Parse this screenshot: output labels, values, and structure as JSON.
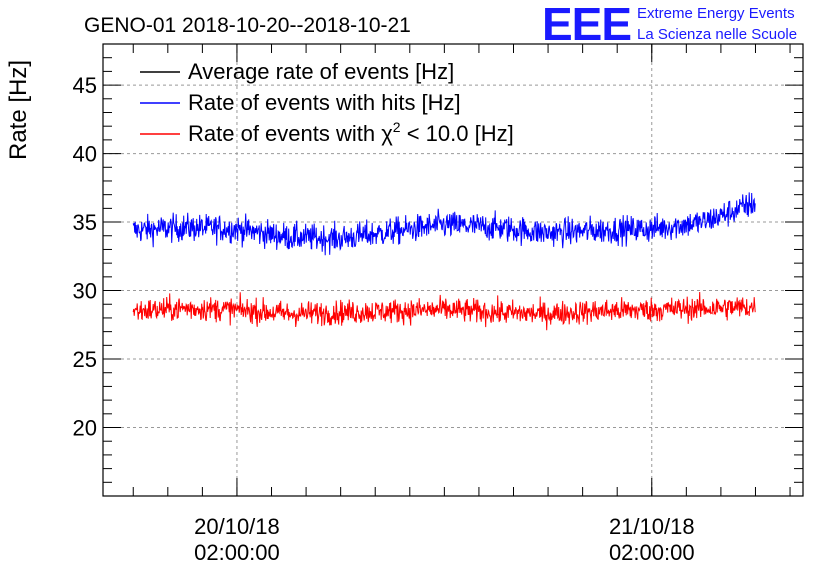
{
  "chart_data": {
    "type": "line",
    "title": "GENO-01 2018-10-20--2018-10-21",
    "ylabel": "Rate [Hz]",
    "xlabel": "",
    "ylim": [
      15,
      48
    ],
    "yticks": [
      20,
      25,
      30,
      35,
      40,
      45
    ],
    "xticks": [
      {
        "date": "20/10/18",
        "time": "02:00:00",
        "t": "2018-10-20T02:00:00"
      },
      {
        "date": "21/10/18",
        "time": "02:00:00",
        "t": "2018-10-21T02:00:00"
      }
    ],
    "xlim": [
      "2018-10-19T18:15:00",
      "2018-10-21T10:45:00"
    ],
    "grid": true,
    "legend_position": "top-left",
    "legend": [
      {
        "name": "Average rate of events [Hz]",
        "color": "#000000"
      },
      {
        "name": "Rate of events with hits [Hz]",
        "color": "#0000ff"
      },
      {
        "name_prefix": "Rate of events with ",
        "chi": "χ",
        "sup": "2",
        "name_suffix": " < 10.0 [Hz]",
        "color": "#ff0000"
      }
    ],
    "series": [
      {
        "name": "Rate of events with hits [Hz]",
        "color": "#0000ff",
        "x": [
          "2018-10-19T20:00:00",
          "2018-10-19T23:00:00",
          "2018-10-20T02:00:00",
          "2018-10-20T05:00:00",
          "2018-10-20T08:00:00",
          "2018-10-20T11:00:00",
          "2018-10-20T14:00:00",
          "2018-10-20T17:00:00",
          "2018-10-20T20:00:00",
          "2018-10-20T23:00:00",
          "2018-10-21T02:00:00",
          "2018-10-21T05:00:00",
          "2018-10-21T08:00:00"
        ],
        "y": [
          34.4,
          34.6,
          34.5,
          33.9,
          33.8,
          34.3,
          34.8,
          34.6,
          34.2,
          34.4,
          34.5,
          35.0,
          36.4
        ],
        "noise": 0.9
      },
      {
        "name": "Rate of events with χ2 < 10.0 [Hz]",
        "color": "#ff0000",
        "x": [
          "2018-10-19T20:00:00",
          "2018-10-19T23:00:00",
          "2018-10-20T02:00:00",
          "2018-10-20T05:00:00",
          "2018-10-20T08:00:00",
          "2018-10-20T11:00:00",
          "2018-10-20T14:00:00",
          "2018-10-20T17:00:00",
          "2018-10-20T20:00:00",
          "2018-10-20T23:00:00",
          "2018-10-21T02:00:00",
          "2018-10-21T05:00:00",
          "2018-10-21T08:00:00"
        ],
        "y": [
          28.5,
          28.7,
          28.6,
          28.3,
          28.4,
          28.5,
          28.6,
          28.4,
          28.3,
          28.5,
          28.6,
          28.7,
          28.8
        ],
        "noise": 0.8
      }
    ]
  },
  "logo": {
    "big": "EEE",
    "line1": "Extreme Energy Events",
    "line2": "La Scienza nelle Scuole",
    "color": "#1a1aff"
  }
}
